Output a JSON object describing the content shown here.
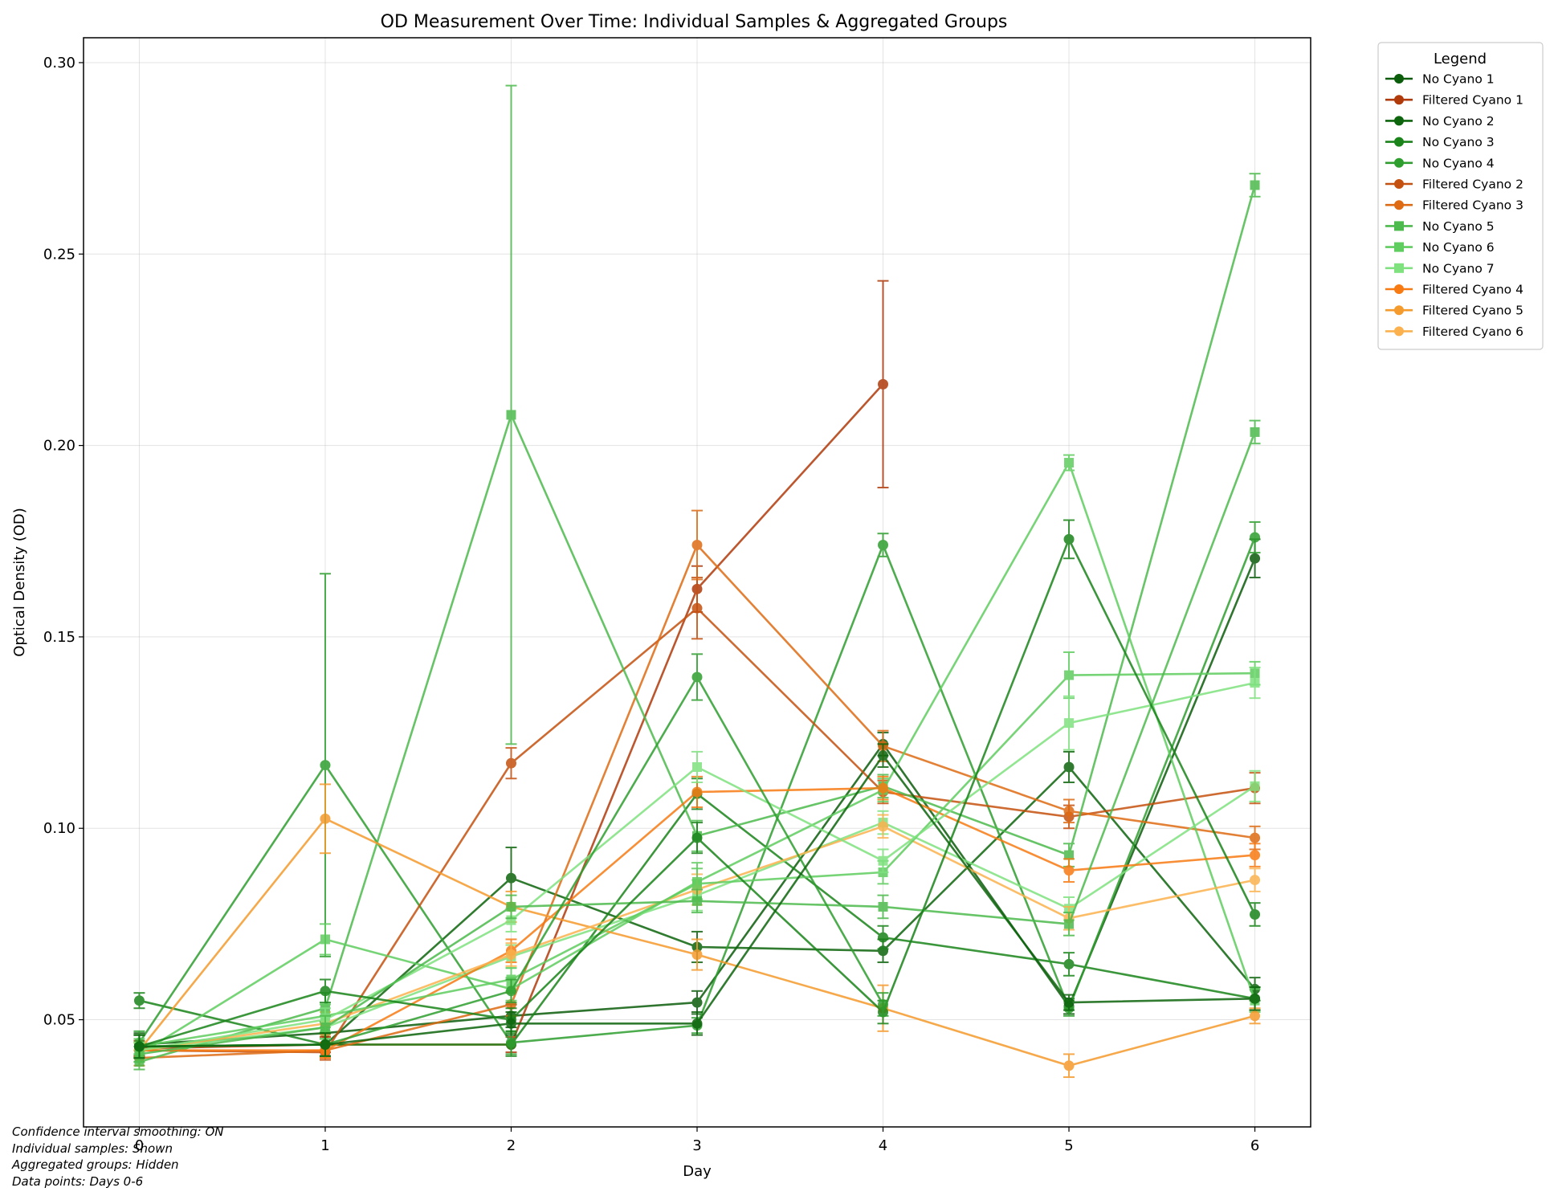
{
  "chart_data": {
    "type": "line",
    "title": "OD Measurement Over Time: Individual Samples & Aggregated Groups",
    "xlabel": "Day",
    "ylabel": "Optical Density (OD)",
    "xlim": [
      -0.3,
      6.3
    ],
    "ylim": [
      0.022,
      0.3065
    ],
    "x_ticks": [
      "0",
      "1",
      "2",
      "3",
      "4",
      "5",
      "6"
    ],
    "y_ticks": [
      "0.05",
      "0.10",
      "0.15",
      "0.20",
      "0.25",
      "0.30"
    ],
    "grid": true,
    "legend": {
      "title": "Legend",
      "position": "outside-right"
    },
    "x": [
      0,
      1,
      2,
      3,
      4,
      5,
      6
    ],
    "series": [
      {
        "name": "No Cyano 1",
        "color": "#0b5c0b",
        "marker": "circle",
        "values": [
          0.0435,
          0.0465,
          0.051,
          0.0545,
          0.122,
          0.0535,
          0.1705
        ],
        "errors": [
          0.003,
          0.003,
          0.003,
          0.003,
          0.003,
          0.002,
          0.005
        ]
      },
      {
        "name": "Filtered Cyano 1",
        "color": "#b03a0a",
        "marker": "circle",
        "values": [
          0.0425,
          0.0435,
          0.0435,
          0.1625,
          0.216,
          null,
          null
        ],
        "errors": [
          0.002,
          0.002,
          0.002,
          0.006,
          0.027,
          null,
          null
        ]
      },
      {
        "name": "No Cyano 2",
        "color": "#0d650d",
        "marker": "circle",
        "values": [
          0.043,
          0.0435,
          0.087,
          0.069,
          0.068,
          0.116,
          0.058
        ],
        "errors": [
          0.003,
          0.003,
          0.008,
          0.004,
          0.003,
          0.004,
          0.003
        ]
      },
      {
        "name": "No Cyano 3",
        "color": "#1a841a",
        "marker": "circle",
        "values": [
          0.055,
          0.0435,
          0.0435,
          0.109,
          0.0715,
          0.0645,
          0.0555
        ],
        "errors": [
          0.002,
          0.003,
          0.003,
          0.004,
          0.003,
          0.003,
          0.003
        ]
      },
      {
        "name": "No Cyano 4",
        "color": "#2e9e2e",
        "marker": "circle",
        "values": [
          0.044,
          0.1165,
          0.044,
          0.0485,
          0.174,
          0.053,
          0.176
        ],
        "errors": [
          0.003,
          0.05,
          0.003,
          0.002,
          0.003,
          0.002,
          0.004
        ]
      },
      {
        "name": "Filtered Cyano 2",
        "color": "#c4510f",
        "marker": "circle",
        "values": [
          0.042,
          0.0415,
          0.117,
          0.1575,
          0.1095,
          0.103,
          0.1105
        ],
        "errors": [
          0.002,
          0.002,
          0.004,
          0.008,
          0.003,
          0.003,
          0.004
        ]
      },
      {
        "name": "Filtered Cyano 3",
        "color": "#de6b13",
        "marker": "circle",
        "values": [
          0.04,
          0.042,
          0.054,
          0.174,
          0.1215,
          0.1045,
          0.0975
        ],
        "errors": [
          0.002,
          0.002,
          0.003,
          0.009,
          0.004,
          0.003,
          0.003
        ]
      },
      {
        "name": "No Cyano 5",
        "color": "#4cba4c",
        "marker": "square",
        "values": [
          0.039,
          0.053,
          0.208,
          0.098,
          0.111,
          0.093,
          0.268
        ],
        "errors": [
          0.002,
          0.004,
          0.086,
          0.004,
          0.003,
          0.003,
          0.003
        ]
      },
      {
        "name": "No Cyano 6",
        "color": "#5fcd5f",
        "marker": "square",
        "values": [
          0.041,
          0.071,
          0.058,
          0.086,
          0.11,
          0.1955,
          0.055
        ],
        "errors": [
          0.002,
          0.004,
          0.003,
          0.005,
          0.003,
          0.002,
          0.003
        ]
      },
      {
        "name": "No Cyano 7",
        "color": "#7fe27f",
        "marker": "square",
        "values": [
          0.042,
          0.048,
          0.0665,
          0.0825,
          0.1015,
          0.079,
          0.111
        ],
        "errors": [
          0.002,
          0.003,
          0.003,
          0.004,
          0.003,
          0.003,
          0.004
        ]
      },
      {
        "name": "Filtered Cyano 4",
        "color": "#f77a12",
        "marker": "circle",
        "values": [
          0.042,
          0.042,
          0.068,
          0.1095,
          0.1105,
          0.089,
          0.093
        ],
        "errors": [
          0.002,
          0.002,
          0.003,
          0.004,
          0.003,
          0.003,
          0.003
        ]
      },
      {
        "name": "Filtered Cyano 5",
        "color": "#f59a2c",
        "marker": "circle",
        "values": [
          0.042,
          0.1025,
          0.0795,
          0.067,
          0.053,
          0.038,
          0.051
        ],
        "errors": [
          0.002,
          0.009,
          0.004,
          0.004,
          0.006,
          0.003,
          0.002
        ]
      },
      {
        "name": "Filtered Cyano 6",
        "color": "#fbb24e",
        "marker": "circle",
        "values": [
          0.042,
          0.049,
          0.067,
          0.084,
          0.1005,
          0.0765,
          0.0865
        ],
        "errors": [
          0.002,
          0.003,
          0.003,
          0.004,
          0.003,
          0.003,
          0.003
        ]
      },
      {
        "name": "",
        "color": "#5fcd5f",
        "marker": "square",
        "legend": false,
        "values": [
          0.043,
          0.051,
          0.0605,
          0.0855,
          0.0885,
          0.14,
          0.1405
        ],
        "errors": [
          0.002,
          0.003,
          0.003,
          0.004,
          0.003,
          0.006,
          0.003
        ]
      },
      {
        "name": "",
        "color": "#7fe27f",
        "marker": "square",
        "legend": false,
        "values": [
          0.042,
          0.05,
          0.076,
          0.116,
          0.0915,
          0.1275,
          0.138
        ],
        "errors": [
          0.002,
          0.003,
          0.003,
          0.004,
          0.003,
          0.007,
          0.004
        ]
      },
      {
        "name": "",
        "color": "#4cba4c",
        "marker": "square",
        "legend": false,
        "values": [
          0.041,
          0.048,
          0.0795,
          0.081,
          0.0795,
          0.075,
          0.2035
        ],
        "errors": [
          0.002,
          0.003,
          0.003,
          0.003,
          0.003,
          0.003,
          0.003
        ]
      },
      {
        "name": "",
        "color": "#1a841a",
        "marker": "circle",
        "legend": false,
        "values": [
          0.043,
          0.0575,
          0.05,
          0.0975,
          0.052,
          0.1755,
          0.0775
        ],
        "errors": [
          0.003,
          0.003,
          0.003,
          0.004,
          0.003,
          0.005,
          0.003
        ]
      },
      {
        "name": "",
        "color": "#2e9e2e",
        "marker": "circle",
        "legend": false,
        "values": [
          0.043,
          0.0435,
          0.0575,
          0.1395,
          0.054,
          null,
          null
        ],
        "errors": [
          0.003,
          0.003,
          0.003,
          0.006,
          0.003,
          null,
          null
        ]
      },
      {
        "name": "",
        "color": "#0d650d",
        "marker": "circle",
        "legend": false,
        "values": [
          0.043,
          0.0435,
          0.049,
          0.049,
          0.119,
          0.0545,
          0.0555
        ],
        "errors": [
          0.003,
          0.003,
          0.003,
          0.003,
          0.003,
          0.002,
          0.003
        ]
      }
    ]
  },
  "notes": [
    "Confidence interval smoothing: ON",
    "Individual samples: Shown",
    "Aggregated groups: Hidden",
    "Data points: Days 0-6"
  ]
}
